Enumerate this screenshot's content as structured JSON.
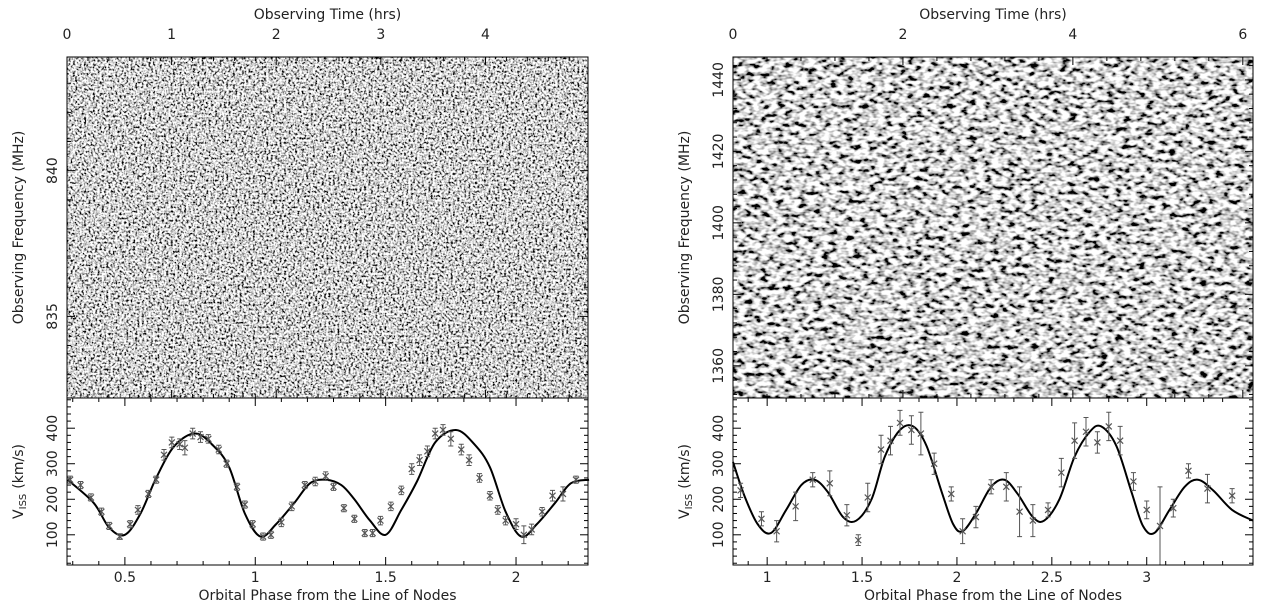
{
  "chart_data": [
    {
      "type": "image",
      "x_label": "Observing Time (hrs)",
      "y_label": "Observing Frequency (MHz)",
      "xlim": [
        0,
        4.98
      ],
      "xticks": [
        0,
        1,
        2,
        3,
        4
      ],
      "ylim": [
        832.2,
        843.9
      ],
      "yticks": [
        835,
        840
      ],
      "colormap": "gray"
    },
    {
      "type": "scatter",
      "x_label": "Orbital Phase from the Line of Nodes",
      "y_label": {
        "main": "V",
        "sub": "ISS",
        "unit": "(km/s)"
      },
      "xlim": [
        0.278,
        2.276
      ],
      "xticks": [
        0.5,
        1,
        1.5,
        2
      ],
      "ylim": [
        15,
        485
      ],
      "yticks": [
        100,
        200,
        300,
        400
      ],
      "points": {
        "color": "#555555",
        "x": [
          0.29,
          0.33,
          0.37,
          0.41,
          0.44,
          0.48,
          0.52,
          0.55,
          0.59,
          0.62,
          0.65,
          0.68,
          0.71,
          0.73,
          0.76,
          0.79,
          0.82,
          0.86,
          0.89,
          0.93,
          0.96,
          0.99,
          1.03,
          1.06,
          1.1,
          1.14,
          1.19,
          1.23,
          1.27,
          1.3,
          1.34,
          1.38,
          1.42,
          1.45,
          1.48,
          1.52,
          1.56,
          1.6,
          1.63,
          1.66,
          1.69,
          1.72,
          1.75,
          1.79,
          1.82,
          1.86,
          1.9,
          1.93,
          1.96,
          2.0,
          2.03,
          2.06,
          2.1,
          2.14,
          2.18,
          2.23
        ],
        "values": [
          255,
          240,
          205,
          165,
          125,
          95,
          130,
          170,
          215,
          255,
          325,
          360,
          355,
          345,
          385,
          375,
          370,
          340,
          300,
          235,
          185,
          130,
          95,
          100,
          135,
          180,
          240,
          250,
          265,
          235,
          175,
          145,
          105,
          105,
          140,
          180,
          225,
          285,
          310,
          335,
          385,
          395,
          370,
          340,
          310,
          260,
          210,
          170,
          140,
          130,
          100,
          115,
          165,
          210,
          215,
          255
        ],
        "errors": [
          10,
          10,
          10,
          10,
          10,
          8,
          10,
          12,
          10,
          10,
          15,
          15,
          15,
          20,
          15,
          15,
          12,
          12,
          10,
          10,
          10,
          10,
          10,
          10,
          12,
          12,
          10,
          12,
          12,
          10,
          10,
          10,
          10,
          10,
          12,
          12,
          12,
          15,
          15,
          15,
          15,
          15,
          20,
          15,
          15,
          12,
          12,
          12,
          12,
          15,
          25,
          15,
          12,
          15,
          20,
          10
        ]
      },
      "model": {
        "color": "#000000",
        "x": [
          0.28,
          0.38,
          0.44,
          0.5,
          0.56,
          0.62,
          0.69,
          0.77,
          0.84,
          0.9,
          0.96,
          1.02,
          1.08,
          1.15,
          1.21,
          1.27,
          1.33,
          1.38,
          1.44,
          1.5,
          1.56,
          1.62,
          1.69,
          1.77,
          1.84,
          1.9,
          1.96,
          2.02,
          2.08,
          2.15,
          2.21,
          2.28
        ],
        "values": [
          255,
          190,
          120,
          100,
          160,
          260,
          350,
          385,
          350,
          290,
          160,
          95,
          130,
          190,
          245,
          255,
          240,
          200,
          140,
          100,
          170,
          250,
          360,
          395,
          355,
          290,
          165,
          95,
          130,
          190,
          245,
          255
        ]
      }
    },
    {
      "type": "image",
      "x_label": "Observing Time (hrs)",
      "y_label": "Observing Frequency (MHz)",
      "xlim": [
        0,
        6.12
      ],
      "xticks": [
        0,
        2,
        4,
        6
      ],
      "ylim": [
        1351,
        1446.4
      ],
      "yticks": [
        1360,
        1380,
        1400,
        1420,
        1440
      ],
      "colormap": "gray"
    },
    {
      "type": "scatter",
      "x_label": "Orbital Phase from the Line of Nodes",
      "y_label": {
        "main": "V",
        "sub": "ISS",
        "unit": "(km/s)"
      },
      "xlim": [
        0.82,
        3.56
      ],
      "xticks": [
        1,
        1.5,
        2,
        2.5,
        3
      ],
      "ylim": [
        15,
        485
      ],
      "yticks": [
        100,
        200,
        300,
        400
      ],
      "points": {
        "color": "#555555",
        "x": [
          0.86,
          0.97,
          1.05,
          1.15,
          1.24,
          1.33,
          1.42,
          1.48,
          1.53,
          1.6,
          1.65,
          1.7,
          1.76,
          1.81,
          1.88,
          1.97,
          2.03,
          2.1,
          2.18,
          2.26,
          2.33,
          2.4,
          2.48,
          2.55,
          2.62,
          2.68,
          2.74,
          2.8,
          2.86,
          2.93,
          3.0,
          3.07,
          3.14,
          3.22,
          3.32,
          3.45
        ],
        "values": [
          225,
          145,
          110,
          180,
          255,
          245,
          155,
          85,
          205,
          340,
          365,
          415,
          395,
          385,
          300,
          215,
          110,
          150,
          235,
          235,
          165,
          140,
          170,
          275,
          365,
          390,
          360,
          405,
          365,
          250,
          170,
          125,
          175,
          280,
          230,
          210
        ],
        "errors": [
          20,
          20,
          30,
          40,
          20,
          35,
          30,
          15,
          40,
          40,
          40,
          35,
          40,
          60,
          30,
          20,
          35,
          30,
          20,
          40,
          70,
          45,
          20,
          40,
          50,
          40,
          30,
          40,
          40,
          25,
          25,
          110,
          25,
          20,
          40,
          20
        ]
      },
      "model": {
        "color": "#000000",
        "x": [
          0.82,
          0.88,
          0.95,
          1.02,
          1.1,
          1.18,
          1.25,
          1.32,
          1.4,
          1.47,
          1.55,
          1.62,
          1.7,
          1.77,
          1.84,
          1.92,
          1.98,
          2.03,
          2.1,
          2.18,
          2.25,
          2.32,
          2.4,
          2.46,
          2.54,
          2.62,
          2.7,
          2.76,
          2.84,
          2.92,
          2.98,
          3.04,
          3.12,
          3.2,
          3.27,
          3.35,
          3.45,
          3.56
        ],
        "values": [
          305,
          210,
          130,
          105,
          170,
          240,
          255,
          220,
          150,
          140,
          200,
          320,
          395,
          405,
          350,
          220,
          130,
          110,
          160,
          235,
          255,
          215,
          150,
          140,
          200,
          320,
          390,
          405,
          350,
          220,
          125,
          105,
          170,
          235,
          255,
          225,
          170,
          140
        ]
      }
    }
  ]
}
